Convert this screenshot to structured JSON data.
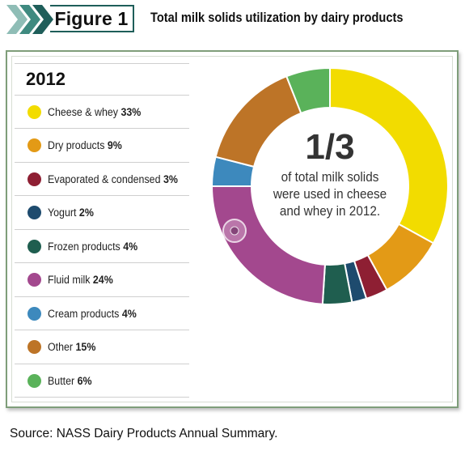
{
  "header": {
    "figure_label": "Figure 1",
    "title": "Total milk solids utilization by dairy products"
  },
  "legend": {
    "year": "2012",
    "items": [
      {
        "label": "Cheese & whey",
        "value": "33%"
      },
      {
        "label": "Dry products",
        "value": "9%"
      },
      {
        "label": "Evaporated & condensed",
        "value": "3%"
      },
      {
        "label": "Yogurt",
        "value": "2%"
      },
      {
        "label": "Frozen products",
        "value": "4%"
      },
      {
        "label": "Fluid milk",
        "value": "24%"
      },
      {
        "label": "Cream products",
        "value": "4%"
      },
      {
        "label": "Other",
        "value": "15%"
      },
      {
        "label": "Butter",
        "value": "6%"
      }
    ]
  },
  "center": {
    "big": "1/3",
    "line1": "of total milk solids",
    "line2": "were used in cheese",
    "line3": "and whey in 2012."
  },
  "source": "Source: NASS Dairy Products Annual Summary.",
  "colors": {
    "frame": "#7f9e7a",
    "chevron_dark": "#1f5e5a",
    "chevron_mid": "#3f8a80",
    "chevron_light": "#8fbdb6"
  },
  "chart_data": {
    "type": "pie",
    "variant": "donut",
    "categories": [
      "Cheese & whey",
      "Dry products",
      "Evaporated & condensed",
      "Yogurt",
      "Frozen products",
      "Fluid milk",
      "Cream products",
      "Other",
      "Butter"
    ],
    "values": [
      33,
      9,
      3,
      2,
      4,
      24,
      4,
      15,
      6
    ],
    "colors": [
      "#f2dc00",
      "#e39a16",
      "#8e1f33",
      "#1e4b6e",
      "#1f5e4f",
      "#a3488e",
      "#3d89bd",
      "#bd7427",
      "#5ab25a"
    ],
    "start_angle_deg": 0,
    "direction": "clockwise",
    "legend_position": "left"
  }
}
